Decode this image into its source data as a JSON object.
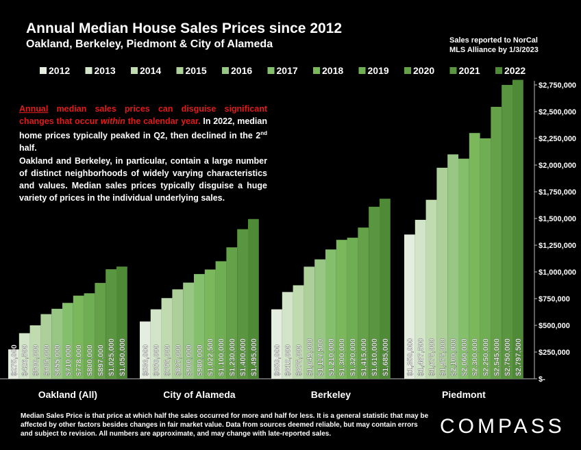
{
  "header": {
    "title": "Annual Median House Sales Prices since 2012",
    "subtitle": "Oakland, Berkeley, Piedmont & City of Alameda",
    "source_line1": "Sales reported to NorCal",
    "source_line2": "MLS Alliance by 1/3/2023"
  },
  "callout": {
    "p1_annual": "Annual",
    "p1_red": " median sales prices can disguise significant changes that occur ",
    "p1_within": "within",
    "p1_red2": " the calendar year.",
    "p1_white": " In 2022, median home prices typically peaked in Q2, then declined in the 2",
    "p1_sup": "nd",
    "p1_end": " half.",
    "p2": "Oakland and Berkeley, in particular, contain a large number of distinct neighborhoods of widely varying characteristics and values. Median sales prices typically disguise a huge variety of prices in the individual underlying sales."
  },
  "footer": {
    "text": "Median Sales Price is that price at which half the sales occurred for more and half for less. It is a general statistic that may be affected by other factors besides changes in fair market value. Data from sources deemed reliable, but may contain errors and subject to revision.  All numbers are approximate, and may change with late-reported sales."
  },
  "brand": {
    "logo_text": "COMPASS"
  },
  "colors": {
    "background": "#000000",
    "red_text": "#e01b1b",
    "series": [
      "#e4eddf",
      "#d3e5c9",
      "#c1dbb0",
      "#add09a",
      "#98c785",
      "#84c06c",
      "#7bb85c",
      "#6fae52",
      "#64a148",
      "#5a9540",
      "#4f8a37"
    ]
  },
  "chart_data": {
    "type": "bar",
    "categories": [
      "Oakland (All)",
      "City of Alameda",
      "Berkeley",
      "Piedmont"
    ],
    "series": [
      {
        "name": "2012",
        "values": [
          275000,
          536000,
          650000,
          1350000
        ]
      },
      {
        "name": "2013",
        "values": [
          426500,
          650000,
          812000,
          1487500
        ]
      },
      {
        "name": "2014",
        "values": [
          500000,
          755000,
          875000,
          1675000
        ]
      },
      {
        "name": "2015",
        "values": [
          605000,
          837000,
          1049000,
          1975000
        ]
      },
      {
        "name": "2016",
        "values": [
          655000,
          900000,
          1117500,
          2100000
        ]
      },
      {
        "name": "2017",
        "values": [
          710000,
          980000,
          1210000,
          2060000
        ]
      },
      {
        "name": "2018",
        "values": [
          778000,
          1022500,
          1300000,
          2300000
        ]
      },
      {
        "name": "2019",
        "values": [
          800000,
          1100000,
          1320000,
          2250000
        ]
      },
      {
        "name": "2020",
        "values": [
          897000,
          1230000,
          1415000,
          2545000
        ]
      },
      {
        "name": "2021",
        "values": [
          1025000,
          1400000,
          1610000,
          2750000
        ]
      },
      {
        "name": "2022",
        "values": [
          1050000,
          1495000,
          1685000,
          2797500
        ]
      }
    ],
    "data_labels": [
      [
        "$275,000",
        "$426,500",
        "$500,000",
        "$605,000",
        "$655,000",
        "$710,000",
        "$778,000",
        "$800,000",
        "$897,000",
        "$1,025,000",
        "$1,050,000"
      ],
      [
        "$536,000",
        "$650,000",
        "$755,000",
        "$837,000",
        "$900,000",
        "$980,000",
        "$1,022,500",
        "$1,100,000",
        "$1,230,000",
        "$1,400,000",
        "$1,495,000"
      ],
      [
        "$650,000",
        "$812,000",
        "$875,000",
        "$1,049,000",
        "$1,117,500",
        "$1,210,000",
        "$1,300,000",
        "$1,320,000",
        "$1,415,000",
        "$1,610,000",
        "$1,685,000"
      ],
      [
        "$1,350,000",
        "$1,487,500",
        "$1,675,000",
        "$1,975,000",
        "$2,100,000",
        "$2,060,000",
        "$2,300,000",
        "$2,250,000",
        "$2,545,000",
        "$2,750,000",
        "$2,797,500"
      ]
    ],
    "ylim": [
      0,
      2750000
    ],
    "y_ticks": [
      0,
      250000,
      500000,
      750000,
      1000000,
      1250000,
      1500000,
      1750000,
      2000000,
      2250000,
      2500000,
      2750000
    ],
    "y_tick_labels": [
      "$-",
      "$250,000",
      "$500,000",
      "$750,000",
      "$1,000,000",
      "$1,250,000",
      "$1,500,000",
      "$1,750,000",
      "$2,000,000",
      "$2,250,000",
      "$2,500,000",
      "$2,750,000"
    ],
    "y_axis_side": "right",
    "legend_position": "top",
    "grid": false
  }
}
